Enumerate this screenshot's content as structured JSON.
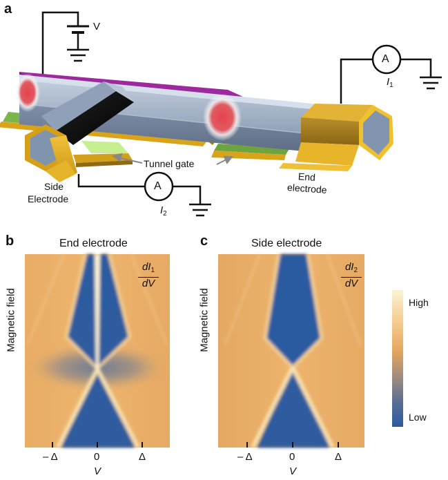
{
  "panels": {
    "a": {
      "letter": "a"
    },
    "b": {
      "letter": "b",
      "title": "End electrode",
      "derivative": {
        "num_d": "dI",
        "num_sub": "1",
        "den": "dV"
      }
    },
    "c": {
      "letter": "c",
      "title": "Side electrode",
      "derivative": {
        "num_d": "dI",
        "num_sub": "2",
        "den": "dV"
      }
    }
  },
  "device": {
    "voltage_label": "V",
    "ammeter_symbol": "A",
    "current1": {
      "main": "I",
      "sub": "1"
    },
    "current2": {
      "main": "I",
      "sub": "2"
    },
    "tunnel_gate_label": "Tunnel gate",
    "side_electrode_label": [
      "Side",
      "Electrode"
    ],
    "end_electrode_label": [
      "End",
      "electrode"
    ]
  },
  "maps": {
    "ylabel": "Magnetic field",
    "xlabel": "V",
    "xticks": [
      "– Δ",
      "0",
      "Δ"
    ]
  },
  "colorbar": {
    "high_label": "High",
    "low_label": "Low",
    "colors": [
      "#fbf3d6",
      "#f5c98a",
      "#e4a45e",
      "#9a8a80",
      "#5a6e94",
      "#2b5aa0"
    ]
  }
}
